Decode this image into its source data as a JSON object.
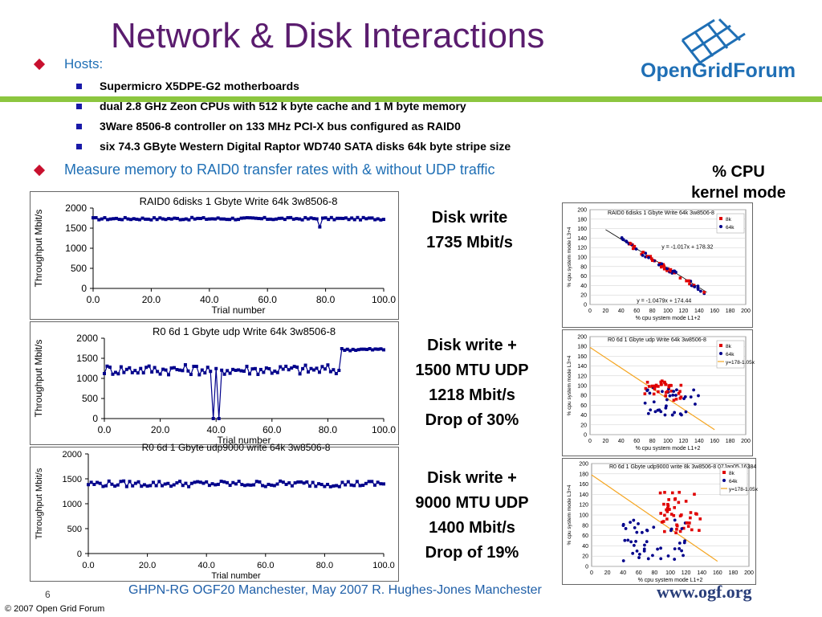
{
  "slide": {
    "title": "Network & Disk Interactions",
    "page_number": "6",
    "footer_center": "GHPN-RG OGF20 Manchester, May 2007 R. Hughes-Jones  Manchester",
    "copyright": "© 2007 Open Grid Forum",
    "footer_url": "www.ogf.org",
    "logo_text": "OpenGridForum"
  },
  "bullets": {
    "hosts_label": "Hosts:",
    "hosts": [
      "Supermicro X5DPE-G2 motherboards",
      "dual 2.8 GHz Zeon CPUs with 512 k byte cache and 1 M byte memory",
      "3Ware 8506-8 controller on 133 MHz PCI-X bus configured as RAID0",
      "six 74.3 GByte Western Digital Raptor WD740 SATA disks 64k byte stripe size"
    ],
    "measure": "Measure memory to RAID0 transfer rates with & without UDP traffic"
  },
  "labels": {
    "cpu_heading_1": "% CPU",
    "cpu_heading_2": "kernel mode",
    "block1": [
      "Disk write",
      "1735 Mbit/s"
    ],
    "block2": [
      "Disk write +",
      "1500 MTU UDP",
      "1218 Mbit/s",
      "Drop of 30%"
    ],
    "block3": [
      "Disk write +",
      "9000 MTU UDP",
      "1400 Mbit/s",
      "Drop of 19%"
    ]
  },
  "colors": {
    "title": "#5a1c6e",
    "bullet_blue": "#1f6fb5",
    "accent_green": "#8cc63f",
    "series_dark": "#00008b",
    "series_red": "#e00000",
    "fit_orange": "#f5a623"
  },
  "chart_data": [
    {
      "type": "line",
      "title": "RAID0 6disks 1 Gbyte Write 64k 3w8506-8",
      "xlabel": "Trial number",
      "ylabel": "Throughput Mbit/s",
      "xlim": [
        0,
        100
      ],
      "ylim": [
        0,
        2000
      ],
      "xticks": [
        "0.0",
        "20.0",
        "40.0",
        "60.0",
        "80.0",
        "100.0"
      ],
      "yticks": [
        "0",
        "500",
        "1000",
        "1500",
        "2000"
      ],
      "pattern": "steady",
      "base": 1735,
      "jitter": 30,
      "dips": [
        [
          78,
          1530
        ]
      ]
    },
    {
      "type": "line",
      "title": "R0 6d 1 Gbyte udp Write 64k 3w8506-8",
      "xlabel": "Trial number",
      "ylabel": "Throughput Mbit/s",
      "xlim": [
        0,
        100
      ],
      "ylim": [
        0,
        2000
      ],
      "xticks": [
        "0.0",
        "20.0",
        "40.0",
        "60.0",
        "80.0",
        "100.0"
      ],
      "yticks": [
        "0",
        "500",
        "1000",
        "1500",
        "2000"
      ],
      "pattern": "udp1500",
      "base": 1218,
      "jitter": 130,
      "high_from": 85,
      "high_level": 1720,
      "dips": [
        [
          39,
          0
        ],
        [
          41,
          0
        ]
      ]
    },
    {
      "type": "line",
      "title": "R0 6d 1 Gbyte udp9000 write 64k 3w8506-8",
      "xlabel": "Trial number",
      "ylabel": "Throughput Mbit/s",
      "xlim": [
        0,
        100
      ],
      "ylim": [
        0,
        2000
      ],
      "xticks": [
        "0.0",
        "20.0",
        "40.0",
        "60.0",
        "80.0",
        "100.0"
      ],
      "yticks": [
        "0",
        "500",
        "1000",
        "1500",
        "2000"
      ],
      "pattern": "steady",
      "base": 1400,
      "jitter": 60,
      "dips": []
    },
    {
      "type": "scatter",
      "title": "RAID0 6disks 1 Gbyte Write 64k 3w8506-8",
      "xlabel": "% cpu system mode L1+2",
      "ylabel": "% cpu system mode L3+4",
      "xlim": [
        0,
        200
      ],
      "ylim": [
        0,
        200
      ],
      "xticks": [
        "0",
        "20",
        "40",
        "60",
        "80",
        "100",
        "120",
        "140",
        "160",
        "180",
        "200"
      ],
      "yticks": [
        "0",
        "20",
        "40",
        "60",
        "80",
        "100",
        "120",
        "140",
        "160",
        "180",
        "200"
      ],
      "legend": [
        "8k",
        "64k"
      ],
      "fits": [
        "y = -1.017x + 178.32",
        "y = -1.0479x + 174.44"
      ],
      "cluster": "line"
    },
    {
      "type": "scatter",
      "title": "R0 6d 1 Gbyte udp Write 64k 3w8506-8",
      "xlabel": "% cpu system mode L1+2",
      "ylabel": "% cpu system mode L3+4",
      "xlim": [
        0,
        200
      ],
      "ylim": [
        0,
        200
      ],
      "xticks": [
        "0",
        "20",
        "40",
        "60",
        "80",
        "100",
        "120",
        "140",
        "160",
        "180",
        "200"
      ],
      "yticks": [
        "0",
        "20",
        "40",
        "60",
        "80",
        "100",
        "120",
        "140",
        "160",
        "180",
        "200"
      ],
      "legend": [
        "8k",
        "64k",
        "y=178-1.05x"
      ],
      "fits": [],
      "cluster": "blob1500"
    },
    {
      "type": "scatter",
      "title": "R0 6d 1 Gbyte udp9000 write 8k 3w8506-8 07Jan05 16384",
      "xlabel": "% cpu system mode L1+2",
      "ylabel": "% cpu system mode L3+4",
      "xlim": [
        0,
        200
      ],
      "ylim": [
        0,
        200
      ],
      "xticks": [
        "0",
        "20",
        "40",
        "60",
        "80",
        "100",
        "120",
        "140",
        "160",
        "180",
        "200"
      ],
      "yticks": [
        "0",
        "20",
        "40",
        "60",
        "80",
        "100",
        "120",
        "140",
        "160",
        "180",
        "200"
      ],
      "legend": [
        "8k",
        "64k",
        "y=178-1.05x"
      ],
      "fits": [],
      "cluster": "blob9000"
    }
  ]
}
